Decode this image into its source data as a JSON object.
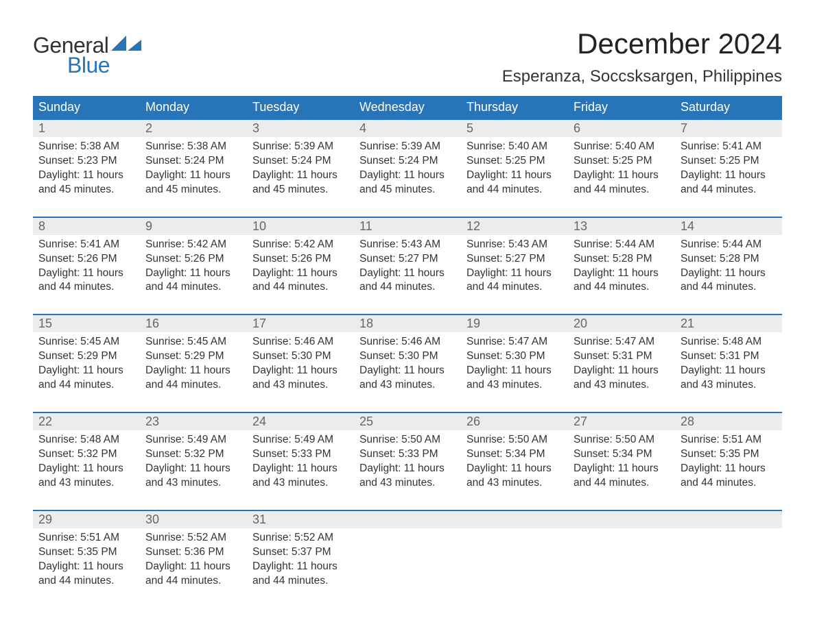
{
  "brand": {
    "part1": "General",
    "part2": "Blue",
    "color_general": "#333333",
    "color_blue": "#2874b8"
  },
  "title": "December 2024",
  "location": "Esperanza, Soccsksargen, Philippines",
  "colors": {
    "header_bg": "#2874b8",
    "header_text": "#ffffff",
    "daynum_band_bg": "#ececec",
    "daynum_text": "#666666",
    "body_text": "#333333",
    "week_border": "#2874b8",
    "page_bg": "#ffffff"
  },
  "typography": {
    "title_fontsize": 42,
    "location_fontsize": 24,
    "weekday_fontsize": 18,
    "daynum_fontsize": 18,
    "body_fontsize": 15.5,
    "logo_fontsize": 32
  },
  "weekdays": [
    "Sunday",
    "Monday",
    "Tuesday",
    "Wednesday",
    "Thursday",
    "Friday",
    "Saturday"
  ],
  "weeks": [
    [
      {
        "n": "1",
        "sr": "Sunrise: 5:38 AM",
        "ss": "Sunset: 5:23 PM",
        "d1": "Daylight: 11 hours",
        "d2": "and 45 minutes."
      },
      {
        "n": "2",
        "sr": "Sunrise: 5:38 AM",
        "ss": "Sunset: 5:24 PM",
        "d1": "Daylight: 11 hours",
        "d2": "and 45 minutes."
      },
      {
        "n": "3",
        "sr": "Sunrise: 5:39 AM",
        "ss": "Sunset: 5:24 PM",
        "d1": "Daylight: 11 hours",
        "d2": "and 45 minutes."
      },
      {
        "n": "4",
        "sr": "Sunrise: 5:39 AM",
        "ss": "Sunset: 5:24 PM",
        "d1": "Daylight: 11 hours",
        "d2": "and 45 minutes."
      },
      {
        "n": "5",
        "sr": "Sunrise: 5:40 AM",
        "ss": "Sunset: 5:25 PM",
        "d1": "Daylight: 11 hours",
        "d2": "and 44 minutes."
      },
      {
        "n": "6",
        "sr": "Sunrise: 5:40 AM",
        "ss": "Sunset: 5:25 PM",
        "d1": "Daylight: 11 hours",
        "d2": "and 44 minutes."
      },
      {
        "n": "7",
        "sr": "Sunrise: 5:41 AM",
        "ss": "Sunset: 5:25 PM",
        "d1": "Daylight: 11 hours",
        "d2": "and 44 minutes."
      }
    ],
    [
      {
        "n": "8",
        "sr": "Sunrise: 5:41 AM",
        "ss": "Sunset: 5:26 PM",
        "d1": "Daylight: 11 hours",
        "d2": "and 44 minutes."
      },
      {
        "n": "9",
        "sr": "Sunrise: 5:42 AM",
        "ss": "Sunset: 5:26 PM",
        "d1": "Daylight: 11 hours",
        "d2": "and 44 minutes."
      },
      {
        "n": "10",
        "sr": "Sunrise: 5:42 AM",
        "ss": "Sunset: 5:26 PM",
        "d1": "Daylight: 11 hours",
        "d2": "and 44 minutes."
      },
      {
        "n": "11",
        "sr": "Sunrise: 5:43 AM",
        "ss": "Sunset: 5:27 PM",
        "d1": "Daylight: 11 hours",
        "d2": "and 44 minutes."
      },
      {
        "n": "12",
        "sr": "Sunrise: 5:43 AM",
        "ss": "Sunset: 5:27 PM",
        "d1": "Daylight: 11 hours",
        "d2": "and 44 minutes."
      },
      {
        "n": "13",
        "sr": "Sunrise: 5:44 AM",
        "ss": "Sunset: 5:28 PM",
        "d1": "Daylight: 11 hours",
        "d2": "and 44 minutes."
      },
      {
        "n": "14",
        "sr": "Sunrise: 5:44 AM",
        "ss": "Sunset: 5:28 PM",
        "d1": "Daylight: 11 hours",
        "d2": "and 44 minutes."
      }
    ],
    [
      {
        "n": "15",
        "sr": "Sunrise: 5:45 AM",
        "ss": "Sunset: 5:29 PM",
        "d1": "Daylight: 11 hours",
        "d2": "and 44 minutes."
      },
      {
        "n": "16",
        "sr": "Sunrise: 5:45 AM",
        "ss": "Sunset: 5:29 PM",
        "d1": "Daylight: 11 hours",
        "d2": "and 44 minutes."
      },
      {
        "n": "17",
        "sr": "Sunrise: 5:46 AM",
        "ss": "Sunset: 5:30 PM",
        "d1": "Daylight: 11 hours",
        "d2": "and 43 minutes."
      },
      {
        "n": "18",
        "sr": "Sunrise: 5:46 AM",
        "ss": "Sunset: 5:30 PM",
        "d1": "Daylight: 11 hours",
        "d2": "and 43 minutes."
      },
      {
        "n": "19",
        "sr": "Sunrise: 5:47 AM",
        "ss": "Sunset: 5:30 PM",
        "d1": "Daylight: 11 hours",
        "d2": "and 43 minutes."
      },
      {
        "n": "20",
        "sr": "Sunrise: 5:47 AM",
        "ss": "Sunset: 5:31 PM",
        "d1": "Daylight: 11 hours",
        "d2": "and 43 minutes."
      },
      {
        "n": "21",
        "sr": "Sunrise: 5:48 AM",
        "ss": "Sunset: 5:31 PM",
        "d1": "Daylight: 11 hours",
        "d2": "and 43 minutes."
      }
    ],
    [
      {
        "n": "22",
        "sr": "Sunrise: 5:48 AM",
        "ss": "Sunset: 5:32 PM",
        "d1": "Daylight: 11 hours",
        "d2": "and 43 minutes."
      },
      {
        "n": "23",
        "sr": "Sunrise: 5:49 AM",
        "ss": "Sunset: 5:32 PM",
        "d1": "Daylight: 11 hours",
        "d2": "and 43 minutes."
      },
      {
        "n": "24",
        "sr": "Sunrise: 5:49 AM",
        "ss": "Sunset: 5:33 PM",
        "d1": "Daylight: 11 hours",
        "d2": "and 43 minutes."
      },
      {
        "n": "25",
        "sr": "Sunrise: 5:50 AM",
        "ss": "Sunset: 5:33 PM",
        "d1": "Daylight: 11 hours",
        "d2": "and 43 minutes."
      },
      {
        "n": "26",
        "sr": "Sunrise: 5:50 AM",
        "ss": "Sunset: 5:34 PM",
        "d1": "Daylight: 11 hours",
        "d2": "and 43 minutes."
      },
      {
        "n": "27",
        "sr": "Sunrise: 5:50 AM",
        "ss": "Sunset: 5:34 PM",
        "d1": "Daylight: 11 hours",
        "d2": "and 44 minutes."
      },
      {
        "n": "28",
        "sr": "Sunrise: 5:51 AM",
        "ss": "Sunset: 5:35 PM",
        "d1": "Daylight: 11 hours",
        "d2": "and 44 minutes."
      }
    ],
    [
      {
        "n": "29",
        "sr": "Sunrise: 5:51 AM",
        "ss": "Sunset: 5:35 PM",
        "d1": "Daylight: 11 hours",
        "d2": "and 44 minutes."
      },
      {
        "n": "30",
        "sr": "Sunrise: 5:52 AM",
        "ss": "Sunset: 5:36 PM",
        "d1": "Daylight: 11 hours",
        "d2": "and 44 minutes."
      },
      {
        "n": "31",
        "sr": "Sunrise: 5:52 AM",
        "ss": "Sunset: 5:37 PM",
        "d1": "Daylight: 11 hours",
        "d2": "and 44 minutes."
      },
      null,
      null,
      null,
      null
    ]
  ]
}
